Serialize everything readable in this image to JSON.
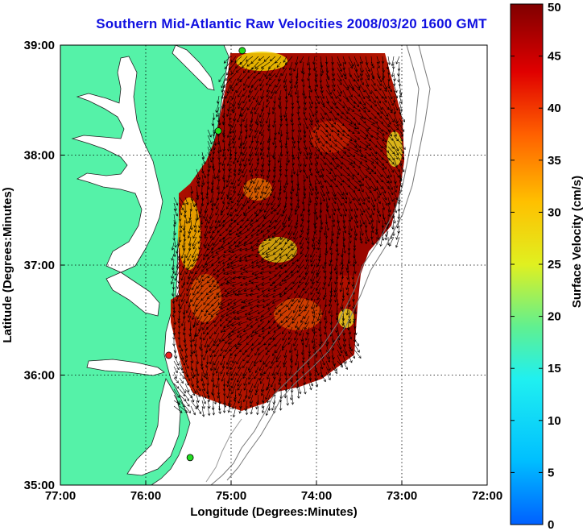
{
  "title": "Southern Mid-Atlantic Raw Velocities 2008/03/20 1600 GMT",
  "xlabel": "Longitude (Degrees:Minutes)",
  "ylabel": "Latitude (Degrees:Minutes)",
  "colorbar": {
    "label": "Surface Velocity (cm/s)",
    "min": 0,
    "max": 50,
    "ticks": [
      "0",
      "5",
      "10",
      "15",
      "20",
      "25",
      "30",
      "35",
      "40",
      "45",
      "50"
    ]
  },
  "map": {
    "lon_range": [
      -77,
      -72
    ],
    "lat_range": [
      35,
      39
    ],
    "x_ticks": [
      "77:00",
      "76:00",
      "75:00",
      "74:00",
      "73:00",
      "72:00"
    ],
    "y_ticks": [
      "35:00",
      "36:00",
      "37:00",
      "38:00",
      "39:00"
    ],
    "grid": "dotted",
    "land_color": "#55f2a8",
    "water_color": "#ffffff",
    "stations": [
      {
        "lon": -74.87,
        "lat": 38.95,
        "color": "#22dd22"
      },
      {
        "lon": -75.15,
        "lat": 38.22,
        "color": "#22dd22"
      },
      {
        "lon": -75.73,
        "lat": 36.18,
        "color": "#ee2222"
      },
      {
        "lon": -75.48,
        "lat": 35.25,
        "color": "#22dd22"
      }
    ]
  }
}
